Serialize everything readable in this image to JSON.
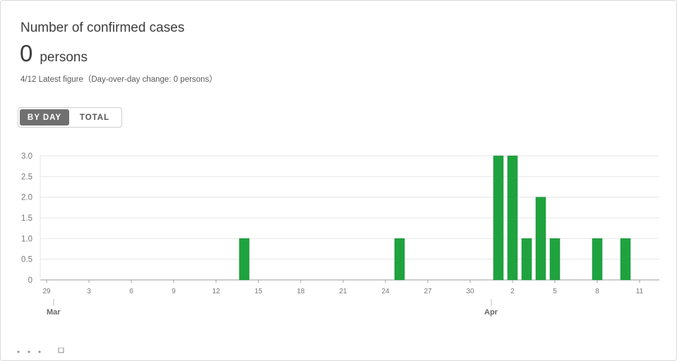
{
  "card": {
    "title": "Number of confirmed cases",
    "value": "0",
    "unit": "persons",
    "subtitle": "4/12 Latest figure（Day-over-day change: 0 persons）"
  },
  "toggle": {
    "by_day_label": "BY DAY",
    "total_label": "TOTAL",
    "selected": "BY DAY"
  },
  "colors": {
    "bar": "#1fa33f",
    "bar_stroke": "#178a33",
    "grid": "#e6e6e6",
    "axis": "#9e9e9e",
    "tick_text": "#777777"
  },
  "chart_data": {
    "type": "bar",
    "title": "",
    "xlabel": "",
    "ylabel": "",
    "ylim": [
      0,
      3
    ],
    "yticks": [
      "0",
      "0.5",
      "1.0",
      "1.5",
      "2.0",
      "2.5",
      "3.0"
    ],
    "grid": true,
    "x_tick_labels": [
      "29",
      "3",
      "6",
      "9",
      "12",
      "15",
      "18",
      "21",
      "24",
      "27",
      "30",
      "2",
      "5",
      "8",
      "11"
    ],
    "month_labels": [
      {
        "label": "Mar",
        "date": "2020-03-01"
      },
      {
        "label": "Apr",
        "date": "2020-04-01"
      }
    ],
    "x_start": "2020-02-29",
    "x_end": "2020-04-12",
    "categories": [
      "2020-02-29",
      "2020-03-01",
      "2020-03-02",
      "2020-03-03",
      "2020-03-04",
      "2020-03-05",
      "2020-03-06",
      "2020-03-07",
      "2020-03-08",
      "2020-03-09",
      "2020-03-10",
      "2020-03-11",
      "2020-03-12",
      "2020-03-13",
      "2020-03-14",
      "2020-03-15",
      "2020-03-16",
      "2020-03-17",
      "2020-03-18",
      "2020-03-19",
      "2020-03-20",
      "2020-03-21",
      "2020-03-22",
      "2020-03-23",
      "2020-03-24",
      "2020-03-25",
      "2020-03-26",
      "2020-03-27",
      "2020-03-28",
      "2020-03-29",
      "2020-03-30",
      "2020-03-31",
      "2020-04-01",
      "2020-04-02",
      "2020-04-03",
      "2020-04-04",
      "2020-04-05",
      "2020-04-06",
      "2020-04-07",
      "2020-04-08",
      "2020-04-09",
      "2020-04-10",
      "2020-04-11",
      "2020-04-12"
    ],
    "values": [
      0,
      0,
      0,
      0,
      0,
      0,
      0,
      0,
      0,
      0,
      0,
      0,
      0,
      0,
      1,
      0,
      0,
      0,
      0,
      0,
      0,
      0,
      0,
      0,
      0,
      1,
      0,
      0,
      0,
      0,
      0,
      0,
      3,
      3,
      1,
      2,
      1,
      0,
      0,
      1,
      0,
      1,
      0,
      0
    ]
  }
}
